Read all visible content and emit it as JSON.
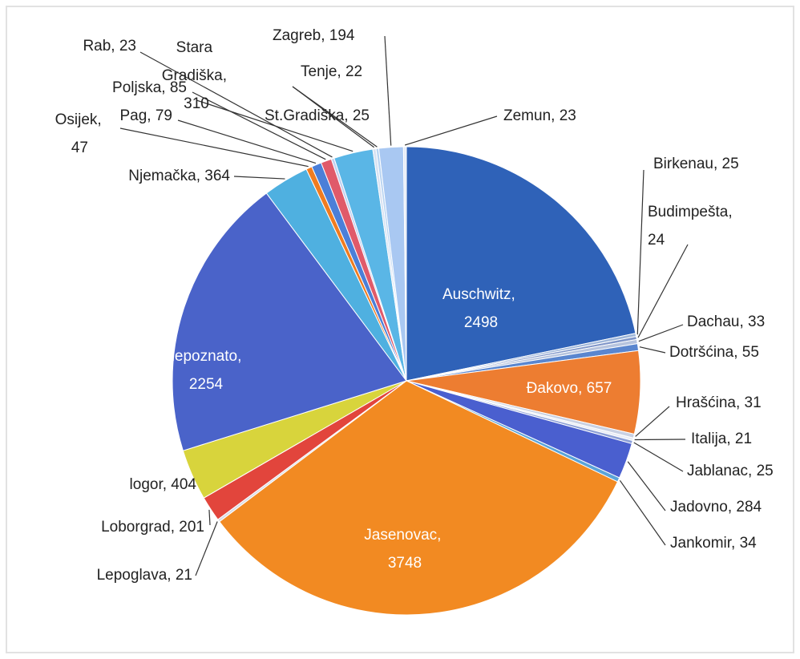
{
  "chart_data": {
    "type": "pie",
    "labels": [
      "Auschwitz, 2498",
      "Birkenau, 25",
      "Budimpešta, 24",
      "Dachau, 33",
      "Dotršćina, 55",
      "Đakovo, 657",
      "Hrašćina, 31",
      "Italija, 21",
      "Jablanac, 25",
      "Jadovno, 284",
      "Jankomir, 34",
      "Jasenovac, 3748",
      "Lepoglava, 21",
      "Loborgrad, 201",
      "logor, 404",
      "nepoznato, 2254",
      "Njemačka, 364",
      "Osijek, 47",
      "Pag, 79",
      "Poljska, 85",
      "Rab, 23",
      "Stara Gradiška, 310",
      "St.Gradiška, 25",
      "Tenje, 22",
      "Zagreb, 194",
      "Zemun, 23"
    ],
    "values": [
      2498,
      25,
      24,
      33,
      55,
      657,
      31,
      21,
      25,
      284,
      34,
      3748,
      21,
      201,
      404,
      2254,
      364,
      47,
      79,
      85,
      23,
      310,
      25,
      22,
      194,
      23
    ],
    "colors": [
      "#2f62b8",
      "#9fb6d9",
      "#7f95c8",
      "#b7c4de",
      "#5a86cf",
      "#ed7d31",
      "#c9d1e3",
      "#e9edf5",
      "#8c9fd6",
      "#4a5fcf",
      "#5aa4d8",
      "#f28a22",
      "#d9dde8",
      "#e2453c",
      "#d8d43c",
      "#4a63c9",
      "#4fb0e0",
      "#f07c20",
      "#4b7fd8",
      "#e05a6a",
      "#c0d0f0",
      "#5ab6e6",
      "#d8e2f2",
      "#b9d4f2",
      "#a9c8f2",
      "#e6ecf7"
    ],
    "center_text": "..."
  }
}
